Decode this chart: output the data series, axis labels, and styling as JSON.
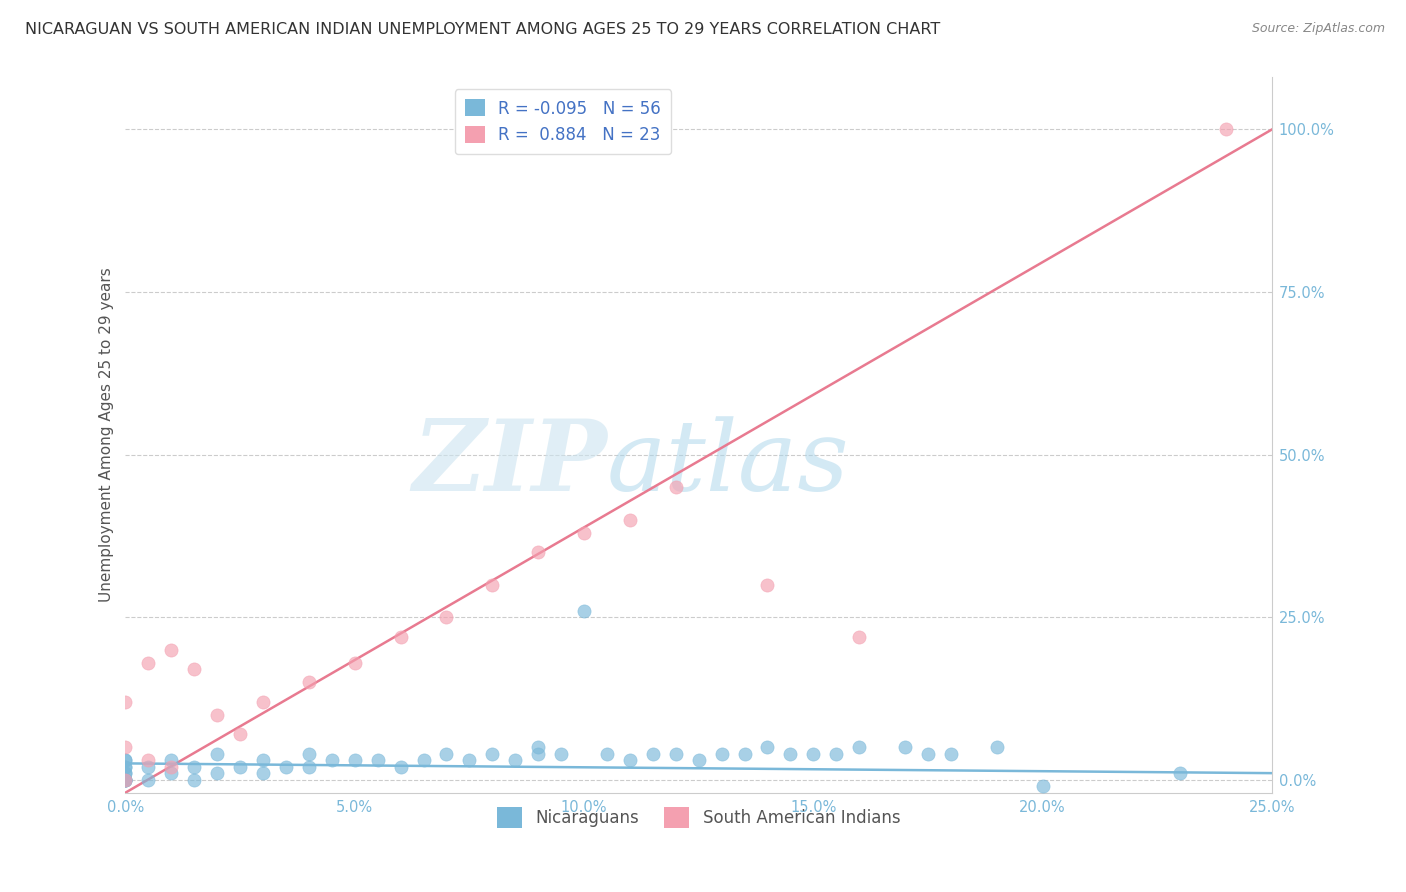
{
  "title": "NICARAGUAN VS SOUTH AMERICAN INDIAN UNEMPLOYMENT AMONG AGES 25 TO 29 YEARS CORRELATION CHART",
  "source": "Source: ZipAtlas.com",
  "ylabel": "Unemployment Among Ages 25 to 29 years",
  "xlabel": "",
  "xlim": [
    0.0,
    0.25
  ],
  "ylim": [
    -0.02,
    1.08
  ],
  "xticks": [
    0.0,
    0.05,
    0.1,
    0.15,
    0.2,
    0.25
  ],
  "xtick_labels": [
    "0.0%",
    "5.0%",
    "10.0%",
    "15.0%",
    "20.0%",
    "25.0%"
  ],
  "yticks": [
    0.0,
    0.25,
    0.5,
    0.75,
    1.0
  ],
  "ytick_labels": [
    "0.0%",
    "25.0%",
    "50.0%",
    "75.0%",
    "100.0%"
  ],
  "blue_color": "#7ab8d9",
  "pink_color": "#f4a0b0",
  "blue_line_color": "#7ab8d9",
  "pink_line_color": "#e87a90",
  "blue_R": -0.095,
  "blue_N": 56,
  "pink_R": 0.884,
  "pink_N": 23,
  "watermark_ZIP": "ZIP",
  "watermark_atlas": "atlas",
  "legend_label_blue": "Nicaraguans",
  "legend_label_pink": "South American Indians",
  "blue_scatter_x": [
    0.0,
    0.0,
    0.0,
    0.0,
    0.0,
    0.0,
    0.0,
    0.0,
    0.0,
    0.0,
    0.0,
    0.005,
    0.005,
    0.01,
    0.01,
    0.015,
    0.015,
    0.02,
    0.02,
    0.025,
    0.03,
    0.03,
    0.035,
    0.04,
    0.04,
    0.045,
    0.05,
    0.055,
    0.06,
    0.065,
    0.07,
    0.075,
    0.08,
    0.085,
    0.09,
    0.09,
    0.095,
    0.1,
    0.105,
    0.11,
    0.115,
    0.12,
    0.125,
    0.13,
    0.135,
    0.14,
    0.145,
    0.15,
    0.155,
    0.16,
    0.17,
    0.175,
    0.18,
    0.19,
    0.2,
    0.23
  ],
  "blue_scatter_y": [
    0.0,
    0.0,
    0.0,
    0.0,
    0.0,
    0.01,
    0.01,
    0.02,
    0.02,
    0.03,
    0.03,
    0.0,
    0.02,
    0.01,
    0.03,
    0.0,
    0.02,
    0.01,
    0.04,
    0.02,
    0.01,
    0.03,
    0.02,
    0.02,
    0.04,
    0.03,
    0.03,
    0.03,
    0.02,
    0.03,
    0.04,
    0.03,
    0.04,
    0.03,
    0.04,
    0.05,
    0.04,
    0.26,
    0.04,
    0.03,
    0.04,
    0.04,
    0.03,
    0.04,
    0.04,
    0.05,
    0.04,
    0.04,
    0.04,
    0.05,
    0.05,
    0.04,
    0.04,
    0.05,
    -0.01,
    0.01
  ],
  "pink_scatter_x": [
    0.0,
    0.0,
    0.0,
    0.005,
    0.005,
    0.01,
    0.01,
    0.015,
    0.02,
    0.025,
    0.03,
    0.04,
    0.05,
    0.06,
    0.07,
    0.08,
    0.09,
    0.1,
    0.11,
    0.12,
    0.14,
    0.16,
    0.24
  ],
  "pink_scatter_y": [
    0.0,
    0.05,
    0.12,
    0.03,
    0.18,
    0.02,
    0.2,
    0.17,
    0.1,
    0.07,
    0.12,
    0.15,
    0.18,
    0.22,
    0.25,
    0.3,
    0.35,
    0.38,
    0.4,
    0.45,
    0.3,
    0.22,
    1.0
  ],
  "pink_line_x0": 0.0,
  "pink_line_y0": -0.02,
  "pink_line_x1": 0.25,
  "pink_line_y1": 1.0,
  "blue_line_x0": 0.0,
  "blue_line_y0": 0.025,
  "blue_line_x1": 0.25,
  "blue_line_y1": 0.01,
  "grid_color": "#cccccc",
  "background_color": "#ffffff",
  "title_fontsize": 11.5,
  "axis_label_fontsize": 11,
  "tick_fontsize": 10.5
}
